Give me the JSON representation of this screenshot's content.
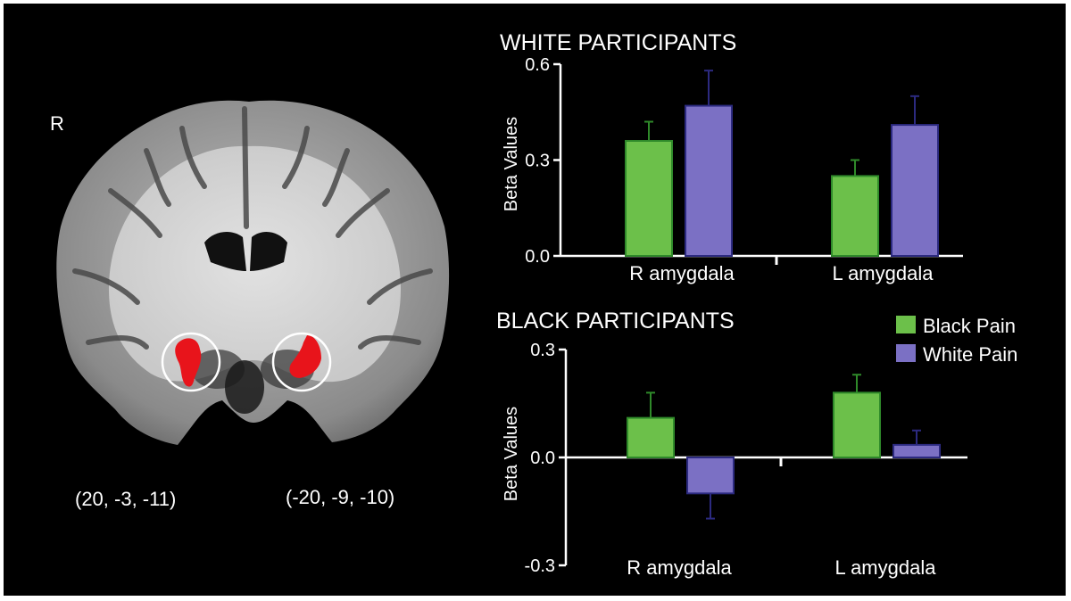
{
  "figure": {
    "hemisphere_label": "R",
    "coordinates": [
      "(20, -3, -11)",
      "(-20, -9, -10)"
    ],
    "highlight_color": "#e8141b"
  },
  "legend": {
    "items": [
      {
        "label": "Black Pain",
        "color": "#6cc04a"
      },
      {
        "label": "White Pain",
        "color": "#7b70c4"
      }
    ]
  },
  "chart_data": [
    {
      "type": "bar",
      "title": "WHITE PARTICIPANTS",
      "ylabel": "Beta Values",
      "xlabel": "",
      "categories": [
        "R amygdala",
        "L amygdala"
      ],
      "series": [
        {
          "name": "Black Pain",
          "values": [
            0.36,
            0.25
          ],
          "errors": [
            0.06,
            0.05
          ],
          "color": "#6cc04a"
        },
        {
          "name": "White Pain",
          "values": [
            0.47,
            0.41
          ],
          "errors": [
            0.11,
            0.09
          ],
          "color": "#7b70c4"
        }
      ],
      "ylim": [
        0,
        0.6
      ],
      "yticks": [
        "0.6",
        "0.3",
        "0.0"
      ],
      "ytick_values": [
        0.6,
        0.3,
        0.0
      ],
      "grid": false
    },
    {
      "type": "bar",
      "title": "BLACK PARTICIPANTS",
      "ylabel": "Beta Values",
      "xlabel": "",
      "categories": [
        "R amygdala",
        "L amygdala"
      ],
      "series": [
        {
          "name": "Black Pain",
          "values": [
            0.11,
            0.18
          ],
          "errors": [
            0.07,
            0.05
          ],
          "color": "#6cc04a"
        },
        {
          "name": "White Pain",
          "values": [
            -0.1,
            0.035
          ],
          "errors": [
            0.07,
            0.04
          ],
          "color": "#7b70c4"
        }
      ],
      "ylim": [
        -0.3,
        0.3
      ],
      "yticks": [
        "0.3",
        "0.0",
        "-0.3"
      ],
      "ytick_values": [
        0.3,
        0.0,
        -0.3
      ],
      "grid": false,
      "legend": "right"
    }
  ]
}
